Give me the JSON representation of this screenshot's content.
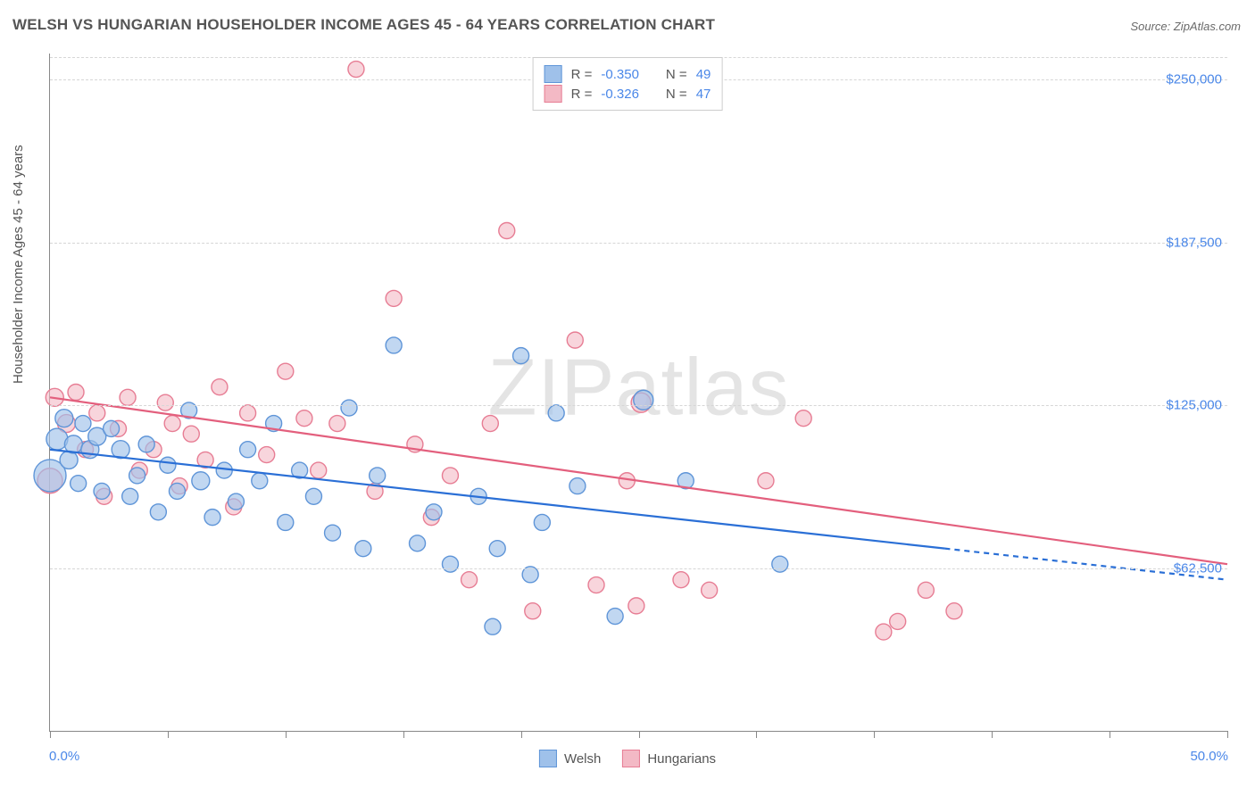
{
  "title": "WELSH VS HUNGARIAN HOUSEHOLDER INCOME AGES 45 - 64 YEARS CORRELATION CHART",
  "source_label": "Source: ZipAtlas.com",
  "watermark": "ZIPatlas",
  "chart": {
    "type": "scatter",
    "x_axis": {
      "min": 0,
      "max": 50,
      "min_label": "0.0%",
      "max_label": "50.0%",
      "tick_step": 5
    },
    "y_axis": {
      "min": 0,
      "max": 260000,
      "label": "Householder Income Ages 45 - 64 years",
      "ticks": [
        62500,
        125000,
        187500,
        250000
      ],
      "tick_labels": [
        "$62,500",
        "$125,000",
        "$187,500",
        "$250,000"
      ]
    },
    "background_color": "#ffffff",
    "grid_color": "#d6d6d6",
    "series": {
      "welsh": {
        "label": "Welsh",
        "fill": "#9fc1ea",
        "stroke": "#5f95d8",
        "opacity": 0.65,
        "marker_radius": 9,
        "correlation_R": "-0.350",
        "correlation_N": "49",
        "trend": {
          "y_at_x0": 108000,
          "y_at_x50": 58000,
          "color": "#2a6fd6",
          "width": 2.2,
          "solid_until_x": 38
        },
        "points": [
          [
            0,
            98000,
            18
          ],
          [
            0.3,
            112000,
            12
          ],
          [
            0.6,
            120000,
            10
          ],
          [
            0.8,
            104000,
            10
          ],
          [
            1.0,
            110000,
            10
          ],
          [
            1.2,
            95000,
            9
          ],
          [
            1.4,
            118000,
            9
          ],
          [
            1.7,
            108000,
            10
          ],
          [
            2.0,
            113000,
            10
          ],
          [
            2.2,
            92000,
            9
          ],
          [
            2.6,
            116000,
            9
          ],
          [
            3.0,
            108000,
            10
          ],
          [
            3.4,
            90000,
            9
          ],
          [
            3.7,
            98000,
            9
          ],
          [
            4.1,
            110000,
            9
          ],
          [
            4.6,
            84000,
            9
          ],
          [
            5.0,
            102000,
            9
          ],
          [
            5.4,
            92000,
            9
          ],
          [
            5.9,
            123000,
            9
          ],
          [
            6.4,
            96000,
            10
          ],
          [
            6.9,
            82000,
            9
          ],
          [
            7.4,
            100000,
            9
          ],
          [
            7.9,
            88000,
            9
          ],
          [
            8.4,
            108000,
            9
          ],
          [
            8.9,
            96000,
            9
          ],
          [
            9.5,
            118000,
            9
          ],
          [
            10.0,
            80000,
            9
          ],
          [
            10.6,
            100000,
            9
          ],
          [
            11.2,
            90000,
            9
          ],
          [
            12.0,
            76000,
            9
          ],
          [
            12.7,
            124000,
            9
          ],
          [
            13.3,
            70000,
            9
          ],
          [
            13.9,
            98000,
            9
          ],
          [
            14.6,
            148000,
            9
          ],
          [
            15.6,
            72000,
            9
          ],
          [
            16.3,
            84000,
            9
          ],
          [
            17.0,
            64000,
            9
          ],
          [
            18.2,
            90000,
            9
          ],
          [
            19.0,
            70000,
            9
          ],
          [
            20.0,
            144000,
            9
          ],
          [
            20.9,
            80000,
            9
          ],
          [
            21.5,
            122000,
            9
          ],
          [
            22.4,
            94000,
            9
          ],
          [
            24.0,
            44000,
            9
          ],
          [
            25.2,
            127000,
            11
          ],
          [
            27.0,
            96000,
            9
          ],
          [
            18.8,
            40000,
            9
          ],
          [
            31.0,
            64000,
            9
          ],
          [
            20.4,
            60000,
            9
          ]
        ]
      },
      "hungarians": {
        "label": "Hungarians",
        "fill": "#f3b9c5",
        "stroke": "#e77d94",
        "opacity": 0.6,
        "marker_radius": 9,
        "correlation_R": "-0.326",
        "correlation_N": "47",
        "trend": {
          "y_at_x0": 128000,
          "y_at_x50": 64000,
          "color": "#e35f7d",
          "width": 2.2,
          "solid_until_x": 50
        },
        "points": [
          [
            0.2,
            128000,
            10
          ],
          [
            0.7,
            118000,
            10
          ],
          [
            1.1,
            130000,
            9
          ],
          [
            1.5,
            108000,
            9
          ],
          [
            2.0,
            122000,
            9
          ],
          [
            2.3,
            90000,
            9
          ],
          [
            2.9,
            116000,
            9
          ],
          [
            3.3,
            128000,
            9
          ],
          [
            3.8,
            100000,
            9
          ],
          [
            4.4,
            108000,
            9
          ],
          [
            4.9,
            126000,
            9
          ],
          [
            5.5,
            94000,
            9
          ],
          [
            6.0,
            114000,
            9
          ],
          [
            6.6,
            104000,
            9
          ],
          [
            7.2,
            132000,
            9
          ],
          [
            7.8,
            86000,
            9
          ],
          [
            8.4,
            122000,
            9
          ],
          [
            9.2,
            106000,
            9
          ],
          [
            10.0,
            138000,
            9
          ],
          [
            10.8,
            120000,
            9
          ],
          [
            11.4,
            100000,
            9
          ],
          [
            12.2,
            118000,
            9
          ],
          [
            13.0,
            254000,
            9
          ],
          [
            13.8,
            92000,
            9
          ],
          [
            14.6,
            166000,
            9
          ],
          [
            15.5,
            110000,
            9
          ],
          [
            16.2,
            82000,
            9
          ],
          [
            17.0,
            98000,
            9
          ],
          [
            17.8,
            58000,
            9
          ],
          [
            18.7,
            118000,
            9
          ],
          [
            19.4,
            192000,
            9
          ],
          [
            20.5,
            46000,
            9
          ],
          [
            22.3,
            150000,
            9
          ],
          [
            23.2,
            56000,
            9
          ],
          [
            24.5,
            96000,
            9
          ],
          [
            24.9,
            48000,
            9
          ],
          [
            25.1,
            126000,
            11
          ],
          [
            26.8,
            58000,
            9
          ],
          [
            28.0,
            54000,
            9
          ],
          [
            30.4,
            96000,
            9
          ],
          [
            32.0,
            120000,
            9
          ],
          [
            36.0,
            42000,
            9
          ],
          [
            37.2,
            54000,
            9
          ],
          [
            38.4,
            46000,
            9
          ],
          [
            35.4,
            38000,
            9
          ],
          [
            0,
            96000,
            14
          ],
          [
            5.2,
            118000,
            9
          ]
        ]
      }
    },
    "legend_top": {
      "r_label": "R =",
      "n_label": "N ="
    }
  }
}
